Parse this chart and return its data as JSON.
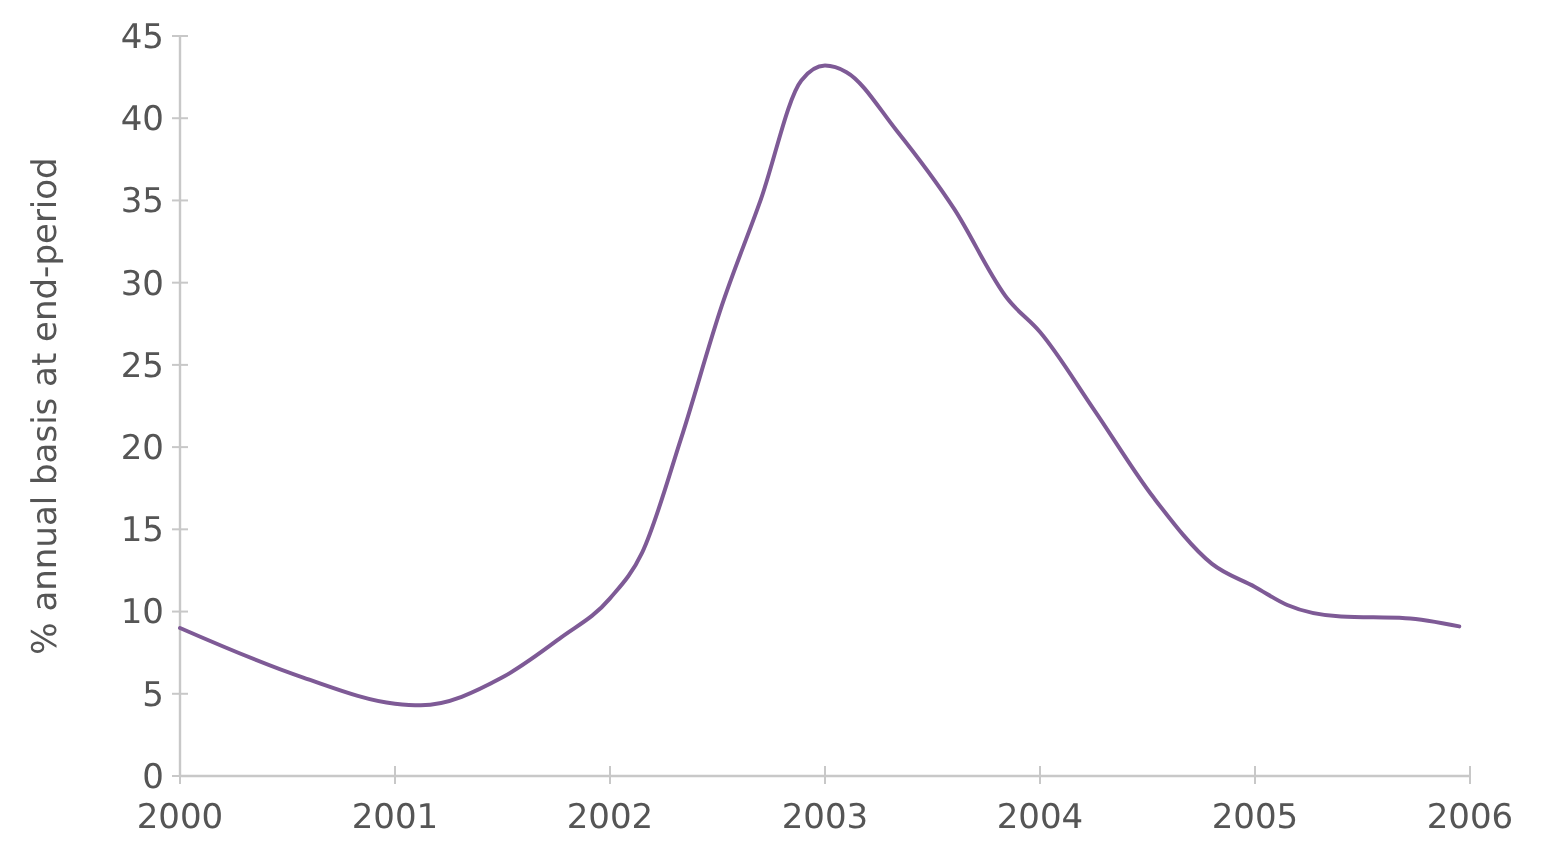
{
  "chart_data": {
    "type": "line",
    "ylabel": "% annual basis at end-period",
    "xlim": [
      2000,
      2006
    ],
    "xticks": [
      2000,
      2001,
      2002,
      2003,
      2004,
      2005,
      2006
    ],
    "ylim": [
      0,
      45
    ],
    "yticks": [
      0,
      5,
      10,
      15,
      20,
      25,
      30,
      35,
      40,
      45
    ],
    "grid": false,
    "marker": "none",
    "line_style": "solid",
    "series": [
      {
        "color": "#7e5a96",
        "x": [
          2000.0,
          2000.57,
          2001.0,
          2001.12,
          2001.5,
          2001.77,
          2002.0,
          2002.15,
          2002.33,
          2002.52,
          2002.7,
          2002.89,
          2003.0,
          2003.1,
          2003.33,
          2003.6,
          2003.85,
          2004.0,
          2004.25,
          2004.53,
          2004.8,
          2005.0,
          2005.15,
          2005.4,
          2005.7,
          2005.95
        ],
        "values": [
          9.0,
          6.0,
          4.4,
          4.3,
          6.0,
          8.4,
          10.8,
          13.6,
          20.5,
          28.6,
          35,
          42.3,
          43.2,
          42.8,
          39.3,
          34.5,
          29,
          27,
          22.3,
          16.9,
          12.9,
          11.5,
          10.4,
          9.7,
          9.6,
          9.1
        ]
      }
    ]
  }
}
